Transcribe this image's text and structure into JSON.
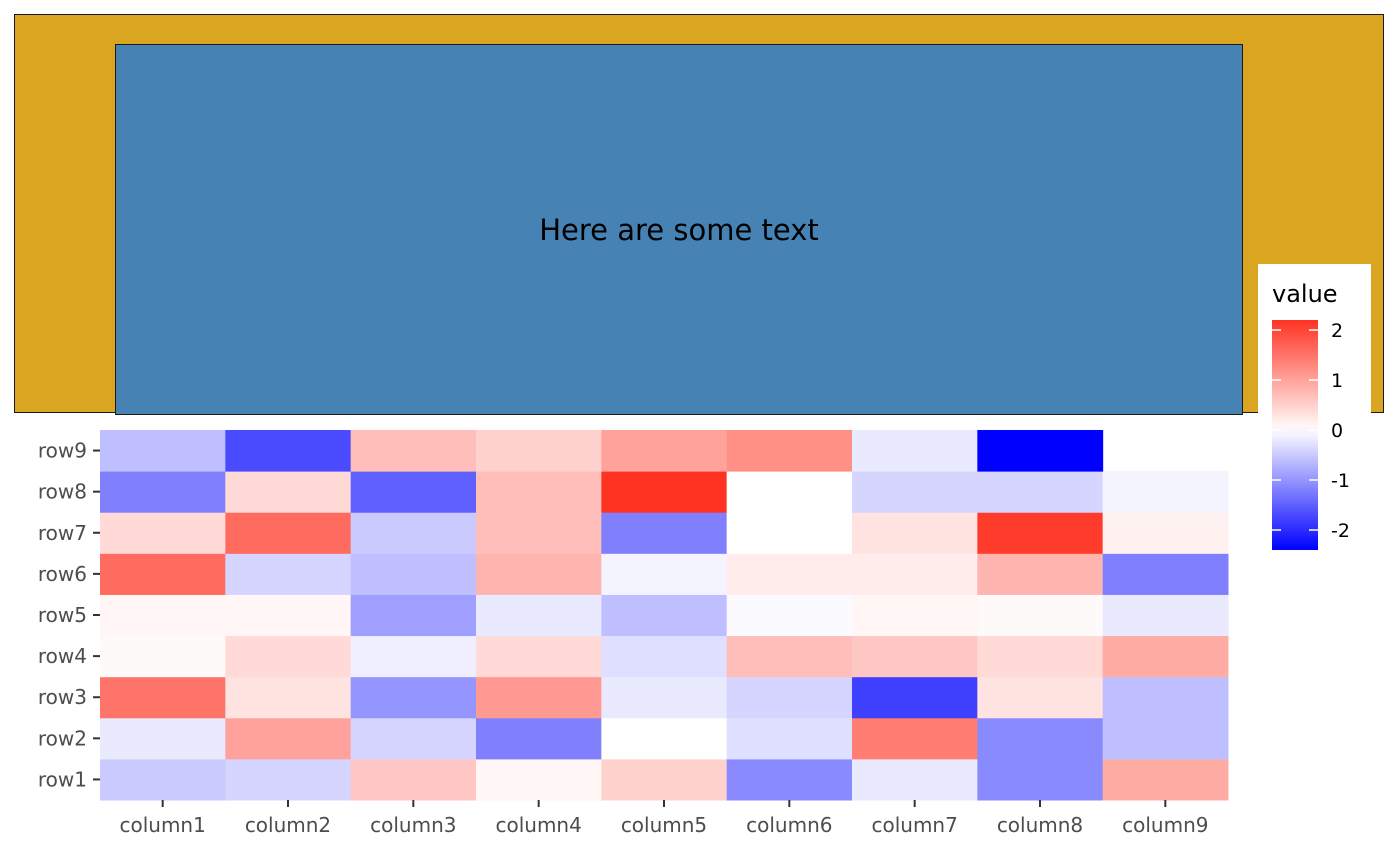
{
  "annotation": {
    "text": "Here are some text",
    "outer_bg": "#DAA520",
    "inner_bg": "#4682B4"
  },
  "chart_data": {
    "type": "heatmap",
    "x_categories": [
      "column1",
      "column2",
      "column3",
      "column4",
      "column5",
      "column6",
      "column7",
      "column8",
      "column9"
    ],
    "y_categories": [
      "row1",
      "row2",
      "row3",
      "row4",
      "row5",
      "row6",
      "row7",
      "row8",
      "row9"
    ],
    "values": [
      [
        -0.5,
        -0.4,
        0.6,
        0.1,
        0.5,
        -1.1,
        -0.2,
        -1.1,
        0.9
      ],
      [
        -0.2,
        1.0,
        -0.4,
        -1.2,
        0.0,
        -0.3,
        1.4,
        -1.1,
        -0.6
      ],
      [
        1.5,
        0.3,
        -1.0,
        1.1,
        -0.2,
        -0.4,
        -1.8,
        0.3,
        -0.6
      ],
      [
        0.05,
        0.4,
        -0.15,
        0.4,
        -0.3,
        0.7,
        0.6,
        0.4,
        0.9
      ],
      [
        0.1,
        0.1,
        -0.9,
        -0.2,
        -0.6,
        -0.05,
        0.1,
        0.05,
        -0.2
      ],
      [
        1.6,
        -0.4,
        -0.6,
        0.8,
        -0.1,
        0.2,
        0.2,
        0.8,
        -1.2
      ],
      [
        0.4,
        1.6,
        -0.5,
        0.7,
        -1.2,
        0.0,
        0.3,
        2.1,
        0.15
      ],
      [
        -1.2,
        0.4,
        -1.5,
        0.7,
        2.2,
        0.0,
        -0.4,
        -0.4,
        -0.1
      ],
      [
        -0.6,
        -1.7,
        0.7,
        0.5,
        1.0,
        1.2,
        -0.2,
        -2.4,
        null
      ]
    ],
    "color_low": "#0000FF",
    "color_mid": "#FFFFFF",
    "color_high": "#FF3322",
    "limits": [
      -2.4,
      2.2
    ],
    "legend": {
      "title": "value",
      "ticks": [
        2,
        1,
        0,
        -1,
        -2
      ],
      "tick_labels": [
        "2",
        "1",
        "0",
        "-1",
        "-2"
      ]
    }
  }
}
